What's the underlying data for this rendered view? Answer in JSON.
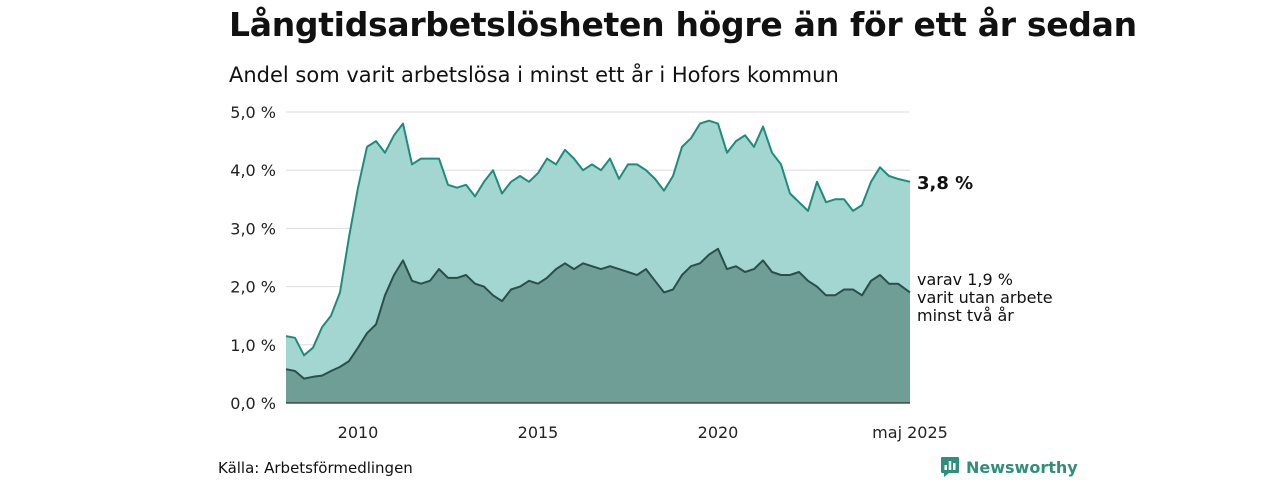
{
  "header": {
    "title": "Långtidsarbetslösheten högre än för ett år sedan",
    "subtitle": "Andel som varit arbetslösa i minst ett år i Hofors kommun"
  },
  "footer": {
    "source": "Källa: Arbetsförmedlingen",
    "brand": "Newsworthy",
    "brand_icon": "newsworthy-chart-logo-icon"
  },
  "chart_data": {
    "type": "area",
    "ylim": [
      0,
      5
    ],
    "y_ticks": [
      0,
      1,
      2,
      3,
      4,
      5
    ],
    "y_tick_labels": [
      "0,0 %",
      "1,0 %",
      "2,0 %",
      "3,0 %",
      "4,0 %",
      "5,0 %"
    ],
    "xlim": [
      "2008-01",
      "2025-05"
    ],
    "x_ticks": [
      {
        "date": "2010-01",
        "label": "2010"
      },
      {
        "date": "2015-01",
        "label": "2015"
      },
      {
        "date": "2020-01",
        "label": "2020"
      },
      {
        "date": "2025-05",
        "label": "maj 2025"
      }
    ],
    "grid": "horizontal",
    "series": [
      {
        "id": "total",
        "fill": "#a4d6d1",
        "stroke": "#1e8c7a",
        "end_label": "3,8 %",
        "points": [
          [
            "2008-01",
            1.15
          ],
          [
            "2008-04",
            1.12
          ],
          [
            "2008-07",
            0.82
          ],
          [
            "2008-10",
            0.95
          ],
          [
            "2009-01",
            1.3
          ],
          [
            "2009-04",
            1.5
          ],
          [
            "2009-07",
            1.9
          ],
          [
            "2009-10",
            2.85
          ],
          [
            "2010-01",
            3.7
          ],
          [
            "2010-04",
            4.4
          ],
          [
            "2010-07",
            4.5
          ],
          [
            "2010-10",
            4.3
          ],
          [
            "2011-01",
            4.6
          ],
          [
            "2011-04",
            4.8
          ],
          [
            "2011-07",
            4.1
          ],
          [
            "2011-10",
            4.2
          ],
          [
            "2012-01",
            4.2
          ],
          [
            "2012-04",
            4.2
          ],
          [
            "2012-07",
            3.75
          ],
          [
            "2012-10",
            3.7
          ],
          [
            "2013-01",
            3.75
          ],
          [
            "2013-04",
            3.55
          ],
          [
            "2013-07",
            3.8
          ],
          [
            "2013-10",
            4.0
          ],
          [
            "2014-01",
            3.6
          ],
          [
            "2014-04",
            3.8
          ],
          [
            "2014-07",
            3.9
          ],
          [
            "2014-10",
            3.8
          ],
          [
            "2015-01",
            3.95
          ],
          [
            "2015-04",
            4.2
          ],
          [
            "2015-07",
            4.1
          ],
          [
            "2015-10",
            4.35
          ],
          [
            "2016-01",
            4.2
          ],
          [
            "2016-04",
            4.0
          ],
          [
            "2016-07",
            4.1
          ],
          [
            "2016-10",
            4.0
          ],
          [
            "2017-01",
            4.2
          ],
          [
            "2017-04",
            3.85
          ],
          [
            "2017-07",
            4.1
          ],
          [
            "2017-10",
            4.1
          ],
          [
            "2018-01",
            4.0
          ],
          [
            "2018-04",
            3.85
          ],
          [
            "2018-07",
            3.65
          ],
          [
            "2018-10",
            3.9
          ],
          [
            "2019-01",
            4.4
          ],
          [
            "2019-04",
            4.55
          ],
          [
            "2019-07",
            4.8
          ],
          [
            "2019-10",
            4.85
          ],
          [
            "2020-01",
            4.8
          ],
          [
            "2020-04",
            4.3
          ],
          [
            "2020-07",
            4.5
          ],
          [
            "2020-10",
            4.6
          ],
          [
            "2021-01",
            4.4
          ],
          [
            "2021-04",
            4.75
          ],
          [
            "2021-07",
            4.3
          ],
          [
            "2021-10",
            4.1
          ],
          [
            "2022-01",
            3.6
          ],
          [
            "2022-04",
            3.45
          ],
          [
            "2022-07",
            3.3
          ],
          [
            "2022-10",
            3.8
          ],
          [
            "2023-01",
            3.45
          ],
          [
            "2023-04",
            3.5
          ],
          [
            "2023-07",
            3.5
          ],
          [
            "2023-10",
            3.3
          ],
          [
            "2024-01",
            3.4
          ],
          [
            "2024-04",
            3.8
          ],
          [
            "2024-07",
            4.05
          ],
          [
            "2024-10",
            3.9
          ],
          [
            "2025-01",
            3.85
          ],
          [
            "2025-05",
            3.8
          ]
        ]
      },
      {
        "id": "two-years",
        "fill": "#6f9e96",
        "stroke": "#2a4f49",
        "end_label": "varav 1,9 %\nvarit utan arbete\nminst två år",
        "points": [
          [
            "2008-01",
            0.58
          ],
          [
            "2008-04",
            0.55
          ],
          [
            "2008-07",
            0.42
          ],
          [
            "2008-10",
            0.45
          ],
          [
            "2009-01",
            0.47
          ],
          [
            "2009-04",
            0.55
          ],
          [
            "2009-07",
            0.62
          ],
          [
            "2009-10",
            0.72
          ],
          [
            "2010-01",
            0.95
          ],
          [
            "2010-04",
            1.2
          ],
          [
            "2010-07",
            1.35
          ],
          [
            "2010-10",
            1.85
          ],
          [
            "2011-01",
            2.2
          ],
          [
            "2011-04",
            2.45
          ],
          [
            "2011-07",
            2.1
          ],
          [
            "2011-10",
            2.05
          ],
          [
            "2012-01",
            2.1
          ],
          [
            "2012-04",
            2.3
          ],
          [
            "2012-07",
            2.15
          ],
          [
            "2012-10",
            2.15
          ],
          [
            "2013-01",
            2.2
          ],
          [
            "2013-04",
            2.05
          ],
          [
            "2013-07",
            2.0
          ],
          [
            "2013-10",
            1.85
          ],
          [
            "2014-01",
            1.75
          ],
          [
            "2014-04",
            1.95
          ],
          [
            "2014-07",
            2.0
          ],
          [
            "2014-10",
            2.1
          ],
          [
            "2015-01",
            2.05
          ],
          [
            "2015-04",
            2.15
          ],
          [
            "2015-07",
            2.3
          ],
          [
            "2015-10",
            2.4
          ],
          [
            "2016-01",
            2.3
          ],
          [
            "2016-04",
            2.4
          ],
          [
            "2016-07",
            2.35
          ],
          [
            "2016-10",
            2.3
          ],
          [
            "2017-01",
            2.35
          ],
          [
            "2017-04",
            2.3
          ],
          [
            "2017-07",
            2.25
          ],
          [
            "2017-10",
            2.2
          ],
          [
            "2018-01",
            2.3
          ],
          [
            "2018-04",
            2.1
          ],
          [
            "2018-07",
            1.9
          ],
          [
            "2018-10",
            1.95
          ],
          [
            "2019-01",
            2.2
          ],
          [
            "2019-04",
            2.35
          ],
          [
            "2019-07",
            2.4
          ],
          [
            "2019-10",
            2.55
          ],
          [
            "2020-01",
            2.65
          ],
          [
            "2020-04",
            2.3
          ],
          [
            "2020-07",
            2.35
          ],
          [
            "2020-10",
            2.25
          ],
          [
            "2021-01",
            2.3
          ],
          [
            "2021-04",
            2.45
          ],
          [
            "2021-07",
            2.25
          ],
          [
            "2021-10",
            2.2
          ],
          [
            "2022-01",
            2.2
          ],
          [
            "2022-04",
            2.25
          ],
          [
            "2022-07",
            2.1
          ],
          [
            "2022-10",
            2.0
          ],
          [
            "2023-01",
            1.85
          ],
          [
            "2023-04",
            1.85
          ],
          [
            "2023-07",
            1.95
          ],
          [
            "2023-10",
            1.95
          ],
          [
            "2024-01",
            1.85
          ],
          [
            "2024-04",
            2.1
          ],
          [
            "2024-07",
            2.2
          ],
          [
            "2024-10",
            2.05
          ],
          [
            "2025-01",
            2.05
          ],
          [
            "2025-05",
            1.9
          ]
        ]
      }
    ]
  }
}
